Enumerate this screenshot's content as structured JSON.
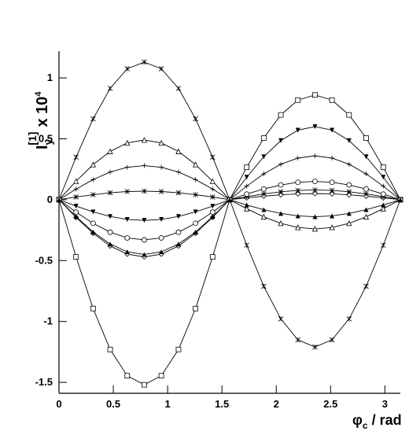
{
  "chart_data": {
    "type": "line",
    "y_label": {
      "main": "I",
      "sub": "y",
      "sup": "[1]",
      "mult": "x 10",
      "exp": "4"
    },
    "x_label": {
      "main": "φ",
      "sub": "c",
      "rest": " / rad"
    },
    "x": [
      0,
      0.157,
      0.314,
      0.471,
      0.628,
      0.785,
      0.942,
      1.1,
      1.257,
      1.414,
      1.571,
      1.728,
      1.885,
      2.042,
      2.199,
      2.356,
      2.513,
      2.67,
      2.827,
      2.985,
      3.142
    ],
    "xlim": [
      0,
      3.142
    ],
    "ylim": [
      -1.59,
      1.22
    ],
    "xticks": [
      0,
      0.5,
      1,
      1.5,
      2,
      2.5,
      3
    ],
    "yticks": [
      -1.5,
      -1,
      -0.5,
      0,
      0.5,
      1
    ],
    "series": [
      {
        "marker": "star",
        "color": "#000",
        "values": [
          0,
          0.349,
          0.664,
          0.914,
          1.075,
          1.13,
          1.075,
          0.914,
          0.664,
          0.349,
          0,
          -0.374,
          -0.711,
          -0.979,
          -1.151,
          -1.21,
          -1.151,
          -0.979,
          -0.711,
          -0.374,
          0
        ]
      },
      {
        "marker": "square",
        "color": "#000",
        "values": [
          0,
          -0.47,
          -0.894,
          -1.23,
          -1.446,
          -1.52,
          -1.446,
          -1.23,
          -0.894,
          -0.47,
          0,
          0.266,
          0.506,
          0.696,
          0.818,
          0.86,
          0.818,
          0.696,
          0.506,
          0.266,
          0
        ]
      },
      {
        "marker": "triangle",
        "color": "#000",
        "values": [
          0,
          0.151,
          0.288,
          0.396,
          0.466,
          0.49,
          0.466,
          0.396,
          0.288,
          0.151,
          0,
          -0.074,
          -0.141,
          -0.194,
          -0.228,
          -0.24,
          -0.228,
          -0.194,
          -0.141,
          -0.074,
          0
        ]
      },
      {
        "marker": "plus",
        "color": "#000",
        "values": [
          0,
          0.087,
          0.165,
          0.227,
          0.266,
          0.28,
          0.266,
          0.227,
          0.165,
          0.087,
          0,
          0.111,
          0.212,
          0.291,
          0.342,
          0.36,
          0.342,
          0.291,
          0.212,
          0.111,
          0
        ]
      },
      {
        "marker": "diamond",
        "color": "#000",
        "values": [
          0,
          -0.145,
          -0.276,
          -0.38,
          -0.447,
          -0.47,
          -0.447,
          -0.38,
          -0.276,
          -0.145,
          0,
          0.015,
          0.029,
          0.04,
          0.048,
          0.05,
          0.048,
          0.04,
          0.029,
          0.015,
          0
        ]
      },
      {
        "marker": "asterisk",
        "color": "#000",
        "values": [
          0,
          0.022,
          0.041,
          0.057,
          0.067,
          0.07,
          0.067,
          0.057,
          0.041,
          0.022,
          0,
          0.025,
          0.047,
          0.065,
          0.076,
          0.08,
          0.076,
          0.065,
          0.047,
          0.025,
          0
        ]
      },
      {
        "marker": "triangle-down-filled",
        "color": "#000",
        "values": [
          0,
          -0.053,
          -0.1,
          -0.138,
          -0.162,
          -0.17,
          -0.162,
          -0.138,
          -0.1,
          -0.053,
          0,
          0.185,
          0.353,
          0.485,
          0.571,
          0.6,
          0.571,
          0.485,
          0.353,
          0.185,
          0
        ]
      },
      {
        "marker": "circle",
        "color": "#000",
        "values": [
          0,
          -0.102,
          -0.194,
          -0.267,
          -0.314,
          -0.33,
          -0.314,
          -0.267,
          -0.194,
          -0.102,
          0,
          0.046,
          0.088,
          0.121,
          0.143,
          0.15,
          0.143,
          0.121,
          0.088,
          0.046,
          0
        ]
      },
      {
        "marker": "triangle-filled",
        "color": "#000",
        "values": [
          0,
          -0.139,
          -0.265,
          -0.364,
          -0.428,
          -0.45,
          -0.428,
          -0.364,
          -0.265,
          -0.139,
          0,
          -0.043,
          -0.082,
          -0.113,
          -0.133,
          -0.14,
          -0.133,
          -0.113,
          -0.082,
          -0.043,
          0
        ]
      }
    ]
  }
}
